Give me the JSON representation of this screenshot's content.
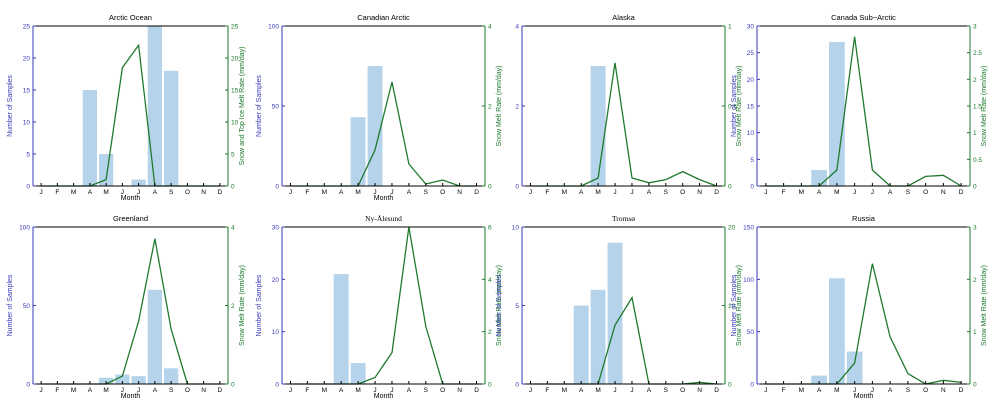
{
  "colors": {
    "bars": "#b5d3ea",
    "line": "#1f7a2e",
    "left_axis": "#3a3ab8",
    "right_axis": "#1a7a2a"
  },
  "chart_data": [
    {
      "type": "bar+line",
      "title": "Arctic Ocean",
      "xlabel": "Month",
      "ylabel_left": "Number of Samples",
      "ylabel_right": "Snow and Top Ice Melt Rate (mm/day)",
      "categories": [
        "J",
        "F",
        "M",
        "A",
        "M",
        "J",
        "J",
        "A",
        "S",
        "O",
        "N",
        "D"
      ],
      "bars": [
        0,
        0,
        0,
        15,
        5,
        0,
        1,
        25,
        18,
        0,
        0,
        0
      ],
      "line": [
        0,
        0,
        0,
        0,
        1,
        18.5,
        22,
        0,
        0,
        0,
        0,
        0
      ],
      "ylim_left": [
        0,
        25
      ],
      "yticks_left": [
        "0",
        "5",
        "10",
        "15",
        "20",
        "25"
      ],
      "ylim_right": [
        0,
        25
      ],
      "yticks_right": [
        "0",
        "5",
        "10",
        "15",
        "20",
        "25"
      ],
      "grid": false
    },
    {
      "type": "bar+line",
      "title": "Canadian Arctic",
      "xlabel": "Month",
      "ylabel_left": "Number of Samples",
      "ylabel_right": "Snow Melt Rate (mm/day)",
      "categories": [
        "J",
        "F",
        "M",
        "A",
        "M",
        "J",
        "J",
        "A",
        "S",
        "O",
        "N",
        "D"
      ],
      "bars": [
        0,
        0,
        0,
        0,
        43,
        75,
        0,
        0,
        0,
        0,
        0,
        0
      ],
      "line": [
        0,
        0,
        0,
        0,
        0,
        0.9,
        2.6,
        0.55,
        0.05,
        0.15,
        0,
        0
      ],
      "ylim_left": [
        0,
        100
      ],
      "yticks_left": [
        "0",
        "50",
        "100"
      ],
      "ylim_right": [
        0,
        4
      ],
      "yticks_right": [
        "0",
        "2",
        "4"
      ],
      "grid": false
    },
    {
      "type": "bar+line",
      "title": "Alaska",
      "xlabel": "",
      "ylabel_left": "",
      "ylabel_right": "Snow Melt Rate (mm/day)",
      "categories": [
        "J",
        "F",
        "M",
        "A",
        "M",
        "J",
        "J",
        "A",
        "S",
        "O",
        "N",
        "D"
      ],
      "bars": [
        0,
        0,
        0,
        0,
        3,
        0,
        0,
        0,
        0,
        0,
        0,
        0
      ],
      "line": [
        0,
        0,
        0,
        0,
        0.05,
        0.77,
        0.05,
        0.02,
        0.04,
        0.09,
        0.04,
        0
      ],
      "ylim_left": [
        0,
        4
      ],
      "yticks_left": [
        "0",
        "2",
        "4"
      ],
      "ylim_right": [
        0,
        1
      ],
      "yticks_right": [
        "0",
        "0.5",
        "1"
      ],
      "grid": false
    },
    {
      "type": "bar+line",
      "title": "Canada Sub−Arctic",
      "xlabel": "",
      "ylabel_left": "Number of Samples",
      "ylabel_right": "Snow Melt Rate (mm/day)",
      "categories": [
        "J",
        "F",
        "M",
        "A",
        "M",
        "J",
        "J",
        "A",
        "S",
        "O",
        "N",
        "D"
      ],
      "bars": [
        0,
        0,
        0,
        3,
        27,
        0,
        0,
        0,
        0,
        0,
        0,
        0
      ],
      "line": [
        0,
        0,
        0,
        0,
        0.3,
        2.8,
        0.3,
        0,
        0,
        0.18,
        0.2,
        0
      ],
      "ylim_left": [
        0,
        30
      ],
      "yticks_left": [
        "0",
        "5",
        "10",
        "15",
        "20",
        "25",
        "30"
      ],
      "ylim_right": [
        0,
        3
      ],
      "yticks_right": [
        "0",
        "0.5",
        "1",
        "1.5",
        "2",
        "2.5",
        "3"
      ],
      "grid": false
    },
    {
      "type": "bar+line",
      "title": "Greenland",
      "xlabel": "Month",
      "ylabel_left": "Number of Samples",
      "ylabel_right": "Snow Melt Rate (mm/day)",
      "categories": [
        "J",
        "F",
        "M",
        "A",
        "M",
        "J",
        "J",
        "A",
        "S",
        "O",
        "N",
        "D"
      ],
      "bars": [
        0,
        0,
        0,
        0,
        4,
        6,
        5,
        60,
        10,
        0,
        0,
        0
      ],
      "line": [
        0,
        0,
        0,
        0,
        0,
        0.2,
        1.6,
        3.7,
        1.4,
        0,
        0,
        0
      ],
      "ylim_left": [
        0,
        100
      ],
      "yticks_left": [
        "0",
        "50",
        "100"
      ],
      "ylim_right": [
        0,
        4
      ],
      "yticks_right": [
        "0",
        "2",
        "4"
      ],
      "grid": false
    },
    {
      "type": "bar+line",
      "title": "Ny-Ålesund",
      "xlabel": "Month",
      "ylabel_left": "Number of Samples",
      "ylabel_right": "Snow Melt Rate (mm/day)",
      "categories": [
        "J",
        "F",
        "M",
        "A",
        "M",
        "J",
        "J",
        "A",
        "S",
        "O",
        "N",
        "D"
      ],
      "bars": [
        0,
        0,
        0,
        21,
        4,
        0,
        0,
        0,
        0,
        0,
        0,
        0
      ],
      "line": [
        0,
        0,
        0,
        0,
        0,
        0.25,
        1.2,
        6,
        2.2,
        0,
        0,
        0
      ],
      "ylim_left": [
        0,
        30
      ],
      "yticks_left": [
        "0",
        "10",
        "20",
        "30"
      ],
      "ylim_right": [
        0,
        6
      ],
      "yticks_right": [
        "0",
        "2",
        "4",
        "6"
      ],
      "grid": false
    },
    {
      "type": "bar+line",
      "title": "Tromsø",
      "xlabel": "",
      "ylabel_left": "Number of Samples",
      "ylabel_right": "Snow Melt Rate (mm/day)",
      "categories": [
        "J",
        "F",
        "M",
        "A",
        "M",
        "J",
        "J",
        "A",
        "S",
        "O",
        "N",
        "D"
      ],
      "bars": [
        0,
        0,
        0,
        5,
        6,
        9,
        0,
        0,
        0,
        0,
        0,
        0
      ],
      "line": [
        0,
        0,
        0,
        0,
        0,
        7.5,
        11,
        0,
        0,
        0,
        0.2,
        0
      ],
      "ylim_left": [
        0,
        10
      ],
      "yticks_left": [
        "0",
        "5",
        "10"
      ],
      "ylim_right": [
        0,
        20
      ],
      "yticks_right": [
        "0",
        "10",
        "20"
      ],
      "grid": false
    },
    {
      "type": "bar+line",
      "title": "Russia",
      "xlabel": "Month",
      "ylabel_left": "Number of Samples",
      "ylabel_right": "Snow Melt Rate (mm/day)",
      "categories": [
        "J",
        "F",
        "M",
        "A",
        "M",
        "J",
        "J",
        "A",
        "S",
        "O",
        "N",
        "D"
      ],
      "bars": [
        0,
        0,
        0,
        8,
        101,
        31,
        0,
        0,
        0,
        0,
        0,
        0
      ],
      "line": [
        0,
        0,
        0,
        0,
        0,
        0.4,
        2.3,
        0.9,
        0.2,
        0,
        0.07,
        0.03
      ],
      "ylim_left": [
        0,
        150
      ],
      "yticks_left": [
        "0",
        "50",
        "100",
        "150"
      ],
      "ylim_right": [
        0,
        3
      ],
      "yticks_right": [
        "0",
        "1",
        "2",
        "3"
      ],
      "grid": false
    }
  ]
}
